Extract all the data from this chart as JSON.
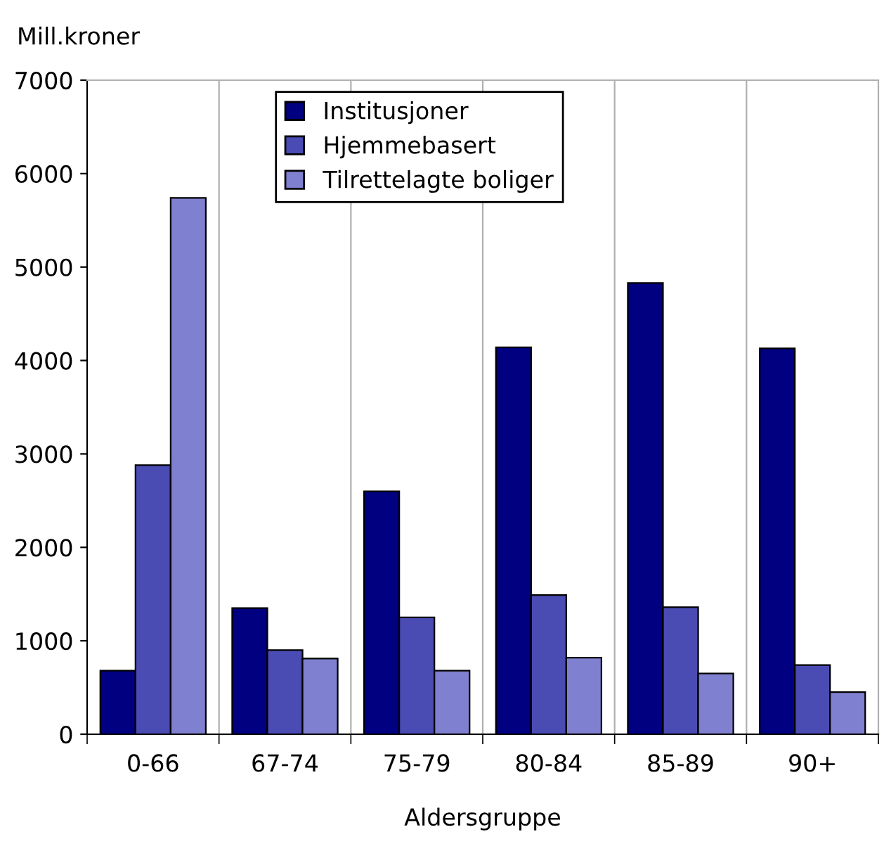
{
  "chart_data": {
    "type": "bar",
    "ylabel": "Mill.kroner",
    "xlabel": "Aldersgruppe",
    "categories": [
      "0-66",
      "67-74",
      "75-79",
      "80-84",
      "85-89",
      "90+"
    ],
    "series": [
      {
        "name": "Institusjoner",
        "color": "#000080",
        "values": [
          680,
          1350,
          2600,
          4140,
          4830,
          4130
        ]
      },
      {
        "name": "Hjemmebasert",
        "color": "#4b4bb4",
        "values": [
          2880,
          900,
          1250,
          1490,
          1360,
          740
        ]
      },
      {
        "name": "Tilrettelagte boliger",
        "color": "#8080d0",
        "values": [
          5740,
          810,
          680,
          820,
          650,
          450
        ]
      }
    ],
    "ylim": [
      0,
      7000
    ],
    "yticks": [
      0,
      1000,
      2000,
      3000,
      4000,
      5000,
      6000,
      7000
    ],
    "grid": "x",
    "legend": "top"
  }
}
